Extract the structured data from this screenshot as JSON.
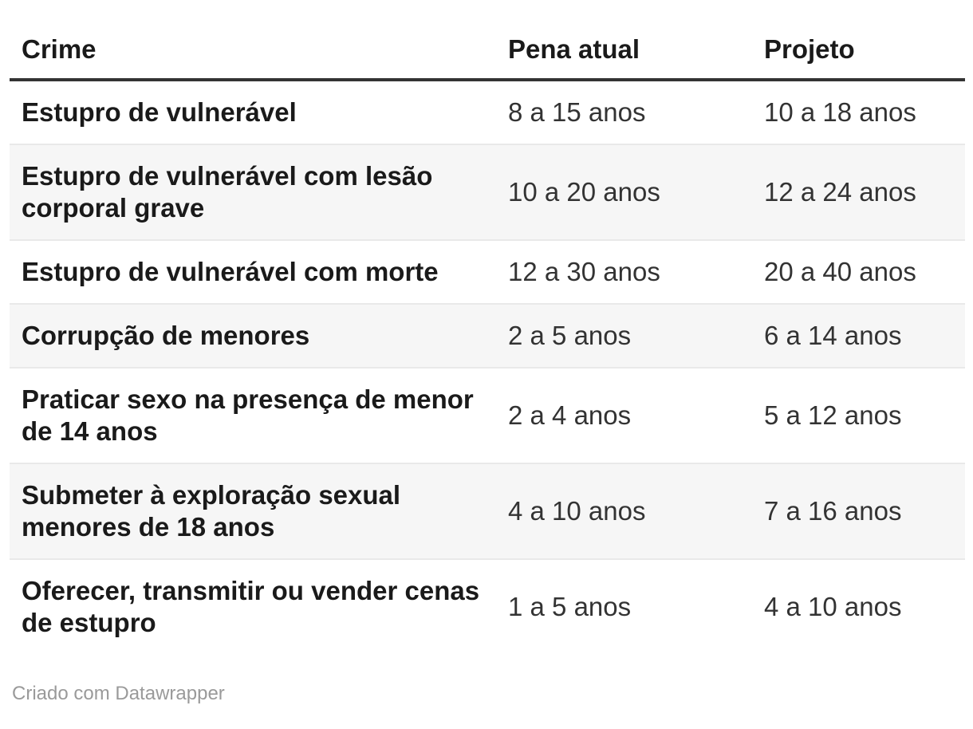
{
  "chart_data": {
    "type": "table",
    "title": "",
    "columns": [
      "Crime",
      "Pena atual",
      "Projeto"
    ],
    "rows": [
      {
        "crime": "Estupro de vulnerável",
        "pena_atual": "8 a 15 anos",
        "projeto": "10 a 18 anos"
      },
      {
        "crime": "Estupro de vulnerável com lesão corporal grave",
        "pena_atual": "10 a 20 anos",
        "projeto": "12 a 24 anos"
      },
      {
        "crime": "Estupro de vulnerável com morte",
        "pena_atual": "12 a 30 anos",
        "projeto": "20 a 40 anos"
      },
      {
        "crime": "Corrupção de menores",
        "pena_atual": "2 a 5 anos",
        "projeto": "6 a 14 anos"
      },
      {
        "crime": "Praticar sexo na presença de menor de 14 anos",
        "pena_atual": "2 a 4 anos",
        "projeto": "5 a 12 anos"
      },
      {
        "crime": "Submeter à exploração sexual menores de 18 anos",
        "pena_atual": "4 a 10 anos",
        "projeto": "7 a 16 anos"
      },
      {
        "crime": "Oferecer, transmitir ou vender cenas de estupro",
        "pena_atual": "1 a 5 anos",
        "projeto": "4 a 10 anos"
      }
    ],
    "layout": {
      "striped_rows": "even",
      "grid": "row-borders",
      "legend": "none",
      "first_column_bold": true
    }
  },
  "footer": {
    "attribution": "Criado com Datawrapper"
  },
  "colors": {
    "bg": "#ffffff",
    "stripe": "#f6f6f6",
    "row-border": "#e9e9e9",
    "header-border": "#333333",
    "text-bold": "#1a1a1a",
    "text-regular": "#333333",
    "footer-text": "#9a9a9a"
  }
}
